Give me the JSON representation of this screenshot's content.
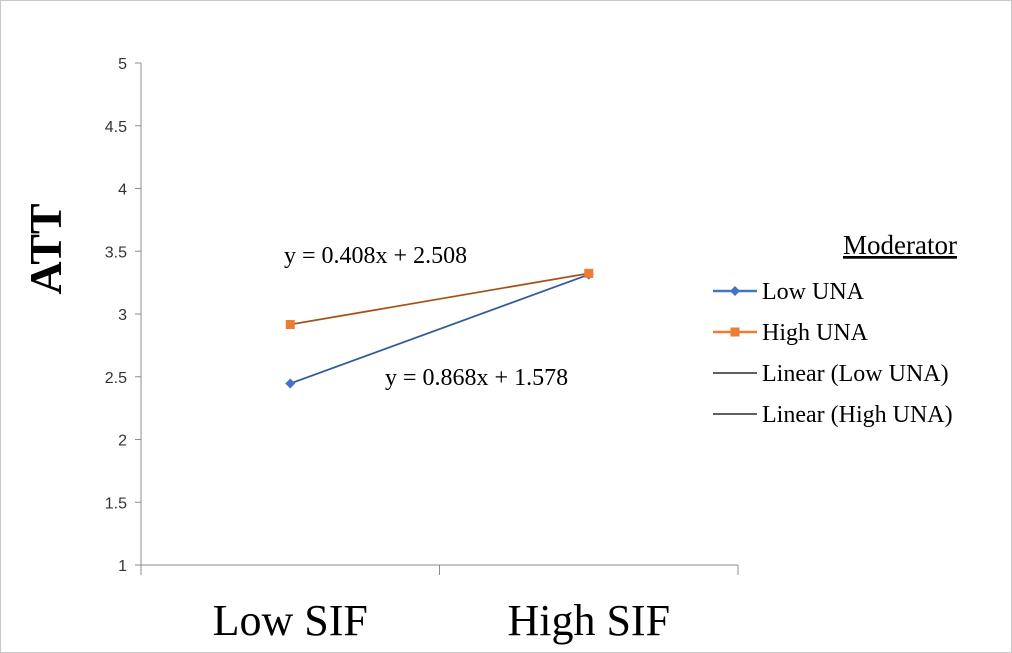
{
  "chart_data": {
    "type": "line",
    "title": "",
    "ylabel": "ATT",
    "xlabel": "",
    "categories": [
      "Low SIF",
      "High SIF"
    ],
    "ylim": [
      1,
      5
    ],
    "yticks": [
      "1",
      "1.5",
      "2",
      "2.5",
      "3",
      "3.5",
      "4",
      "4.5",
      "5"
    ],
    "grid": false,
    "series": [
      {
        "name": "Low UNA",
        "values": [
          2.446,
          3.314
        ],
        "color": "#4472C4",
        "marker": "diamond"
      },
      {
        "name": "High UNA",
        "values": [
          2.916,
          3.324
        ],
        "color": "#ED7D31",
        "marker": "square"
      }
    ],
    "trendlines": [
      {
        "name": "Linear (Low UNA)",
        "slope": 0.868,
        "intercept": 1.578,
        "color": "#1F3864",
        "equation": "y = 0.868x + 1.578"
      },
      {
        "name": "Linear (High UNA)",
        "slope": 0.408,
        "intercept": 2.508,
        "color": "#3b1d0a",
        "equation": "y = 0.408x + 2.508"
      }
    ],
    "legend": {
      "title": "Moderator",
      "position": "right",
      "entries": [
        "Low UNA",
        "High UNA",
        "Linear (Low UNA)",
        "Linear (High UNA)"
      ]
    }
  }
}
